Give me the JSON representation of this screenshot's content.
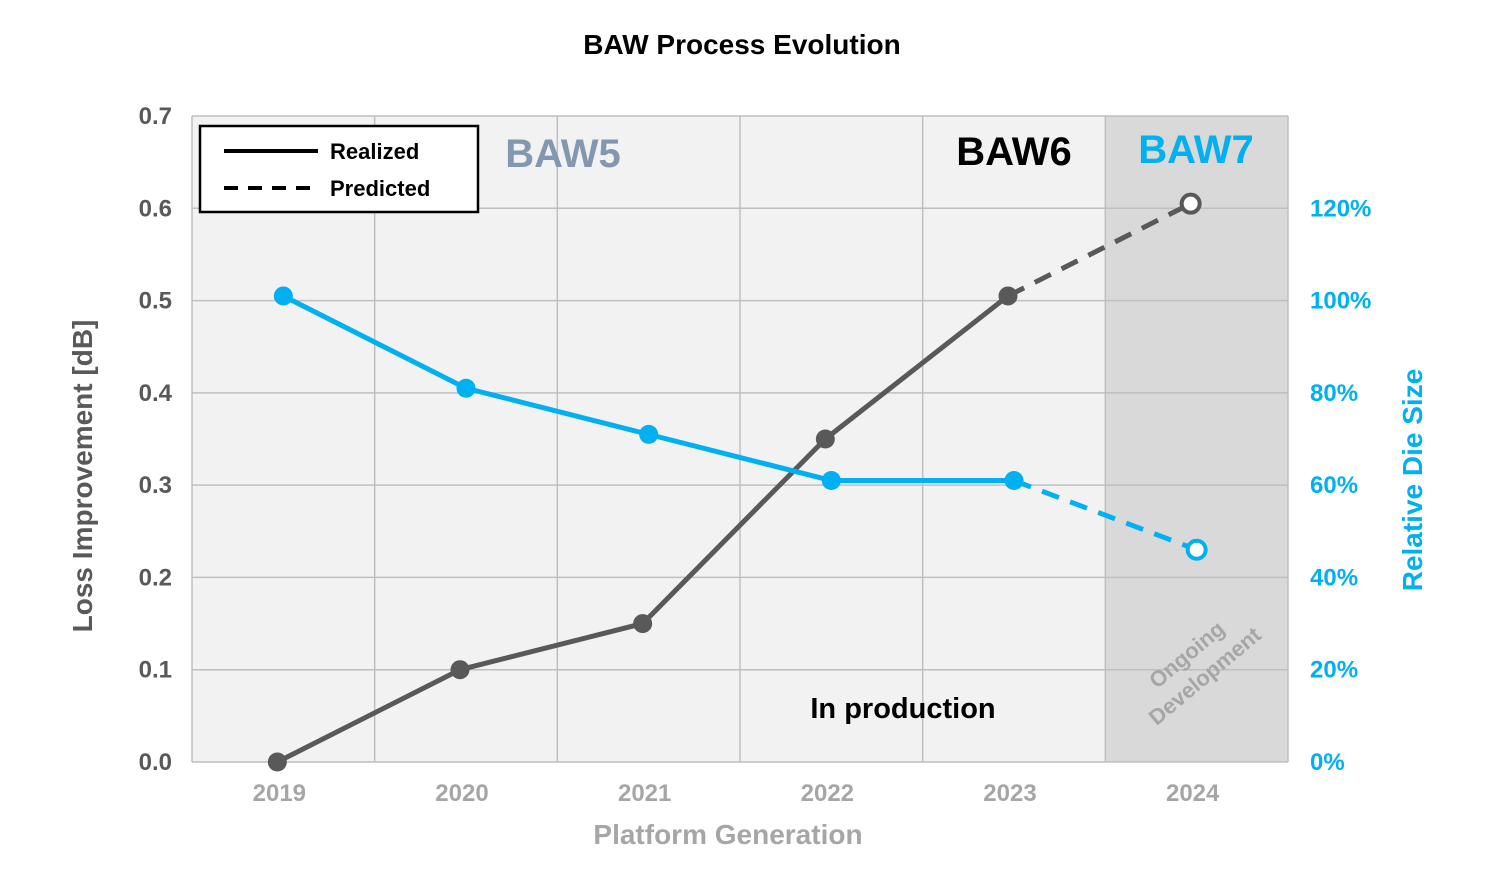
{
  "chart_data": {
    "type": "line",
    "title": "BAW Process Evolution",
    "xlabel": "Platform Generation",
    "ylabel": "Loss Improvement [dB]",
    "y2label": "Relative Die Size",
    "categories": [
      "2019",
      "2020",
      "2021",
      "2022",
      "2023",
      "2024"
    ],
    "ylim": [
      0,
      0.7
    ],
    "y_ticks": [
      "0.0",
      "0.1",
      "0.2",
      "0.3",
      "0.4",
      "0.5",
      "0.6",
      "0.7"
    ],
    "y2lim": [
      0,
      140
    ],
    "y2_ticks": [
      "0%",
      "20%",
      "40%",
      "60%",
      "80%",
      "100%",
      "120%"
    ],
    "series": [
      {
        "name": "Loss Improvement [dB]",
        "axis": "left",
        "color": "#595959",
        "values": [
          0.0,
          0.1,
          0.15,
          0.35,
          0.505,
          0.605
        ],
        "realized_through_index": 4,
        "open_marker_indices": [
          5
        ]
      },
      {
        "name": "Relative Die Size",
        "axis": "right",
        "color": "#00b0f0",
        "values": [
          101,
          81,
          71,
          61,
          61,
          46
        ],
        "realized_through_index": 4,
        "open_marker_indices": [
          5
        ]
      }
    ],
    "legend": {
      "position": "top-left",
      "entries": [
        {
          "label": "Realized",
          "style": "solid"
        },
        {
          "label": "Predicted",
          "style": "dashed"
        }
      ]
    },
    "annotations": {
      "baw5": {
        "text": "BAW5",
        "color": "#8497b0"
      },
      "baw6": {
        "text": "BAW6",
        "color": "#000000"
      },
      "baw7": {
        "text": "BAW7",
        "color": "#00b0f0"
      },
      "production": {
        "text": "In production",
        "color": "#000000"
      },
      "ongoing_line1": {
        "text": "Ongoing",
        "color": "#a6a6a6"
      },
      "ongoing_line2": {
        "text": "Development",
        "color": "#a6a6a6"
      }
    },
    "colors": {
      "plot_bg": "#f2f2f2",
      "dev_region_bg": "#d9d9d9",
      "grid": "#bfbfbf"
    },
    "grid": true
  }
}
